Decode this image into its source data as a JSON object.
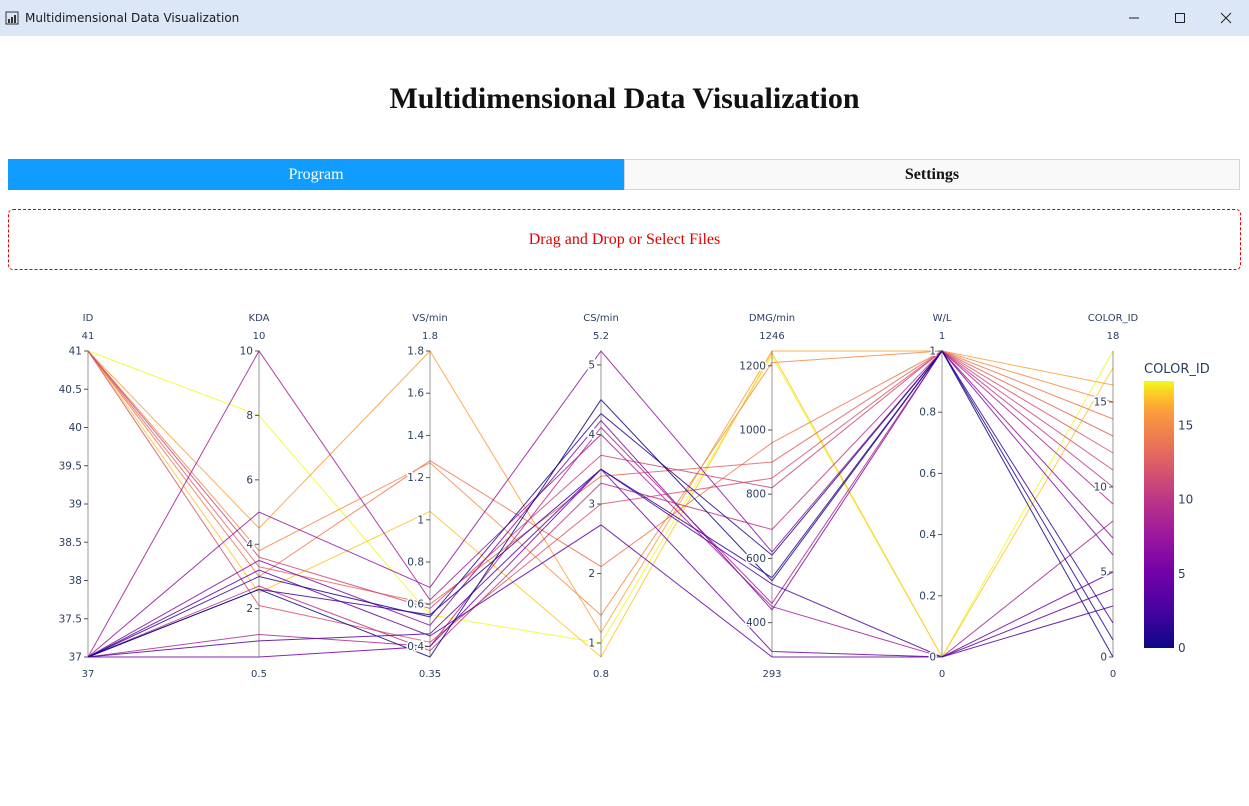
{
  "window": {
    "title": "Multidimensional Data Visualization"
  },
  "header": {
    "title": "Multidimensional Data Visualization"
  },
  "tabs": [
    {
      "label": "Program",
      "active": true
    },
    {
      "label": "Settings",
      "active": false
    }
  ],
  "upload": {
    "text": "Drag and Drop or Select Files"
  },
  "colors": {
    "accent": "#119dff",
    "upload_border": "#e00000",
    "titlebar": "#dbe6f7"
  },
  "chart_data": {
    "type": "parallel_coordinates",
    "color_by": "COLOR_ID",
    "colorscale": "plasma",
    "colorbar": {
      "title": "COLOR_ID",
      "range": [
        0,
        18
      ],
      "ticks": [
        0,
        5,
        10,
        15
      ]
    },
    "dimensions": [
      {
        "label": "ID",
        "range": [
          37,
          41
        ],
        "min_label": "37",
        "max_label": "41",
        "ticks": [
          37,
          37.5,
          38,
          38.5,
          39,
          39.5,
          40,
          40.5,
          41
        ]
      },
      {
        "label": "KDA",
        "range": [
          0.5,
          10
        ],
        "min_label": "0.5",
        "max_label": "10",
        "ticks": [
          2,
          4,
          6,
          8,
          10
        ]
      },
      {
        "label": "VS/min",
        "range": [
          0.35,
          1.8
        ],
        "min_label": "0.35",
        "max_label": "1.8",
        "ticks": [
          0.4,
          0.6,
          0.8,
          1,
          1.2,
          1.4,
          1.6,
          1.8
        ]
      },
      {
        "label": "CS/min",
        "range": [
          0.8,
          5.2
        ],
        "min_label": "0.8",
        "max_label": "5.2",
        "ticks": [
          1,
          2,
          3,
          4,
          5
        ]
      },
      {
        "label": "DMG/min",
        "range": [
          293,
          1246
        ],
        "min_label": "293",
        "max_label": "1246",
        "ticks": [
          400,
          600,
          800,
          1000,
          1200
        ]
      },
      {
        "label": "W/L",
        "range": [
          0,
          1
        ],
        "min_label": "0",
        "max_label": "1",
        "ticks": [
          0,
          0.2,
          0.4,
          0.6,
          0.8,
          1
        ]
      },
      {
        "label": "COLOR_ID",
        "range": [
          0,
          18
        ],
        "min_label": "0",
        "max_label": "18",
        "ticks": [
          0,
          5,
          10,
          15
        ]
      }
    ],
    "records": [
      [
        41,
        8.0,
        0.55,
        1.0,
        1230,
        0,
        18
      ],
      [
        41,
        2.5,
        1.04,
        0.8,
        1240,
        0,
        17
      ],
      [
        41,
        4.5,
        1.8,
        1.15,
        1246,
        1,
        16
      ],
      [
        41,
        3.8,
        1.27,
        1.4,
        1210,
        1,
        15
      ],
      [
        41,
        3.0,
        1.28,
        2.1,
        960,
        1,
        14
      ],
      [
        41,
        3.3,
        0.6,
        3.4,
        900,
        1,
        13
      ],
      [
        41,
        2.1,
        0.42,
        3.0,
        850,
        1,
        12
      ],
      [
        41,
        3.6,
        0.58,
        3.7,
        820,
        1,
        11
      ],
      [
        37,
        2.7,
        0.38,
        3.3,
        690,
        1,
        10
      ],
      [
        37,
        1.2,
        0.4,
        4.1,
        460,
        1,
        9
      ],
      [
        37,
        10,
        0.62,
        4.0,
        450,
        0,
        8
      ],
      [
        37,
        5.0,
        0.68,
        5.2,
        620,
        1,
        7
      ],
      [
        37,
        3.5,
        0.5,
        4.2,
        440,
        1,
        6
      ],
      [
        37,
        0.5,
        0.4,
        3.5,
        310,
        0,
        5
      ],
      [
        37,
        3.2,
        0.45,
        2.7,
        293,
        0,
        4
      ],
      [
        37,
        1.0,
        0.46,
        3.5,
        520,
        0,
        3
      ],
      [
        37,
        2.6,
        0.55,
        3.5,
        540,
        1,
        2
      ],
      [
        37,
        3.0,
        0.54,
        4.3,
        610,
        1,
        1
      ],
      [
        37,
        2.6,
        0.35,
        4.5,
        530,
        1,
        0
      ]
    ]
  }
}
